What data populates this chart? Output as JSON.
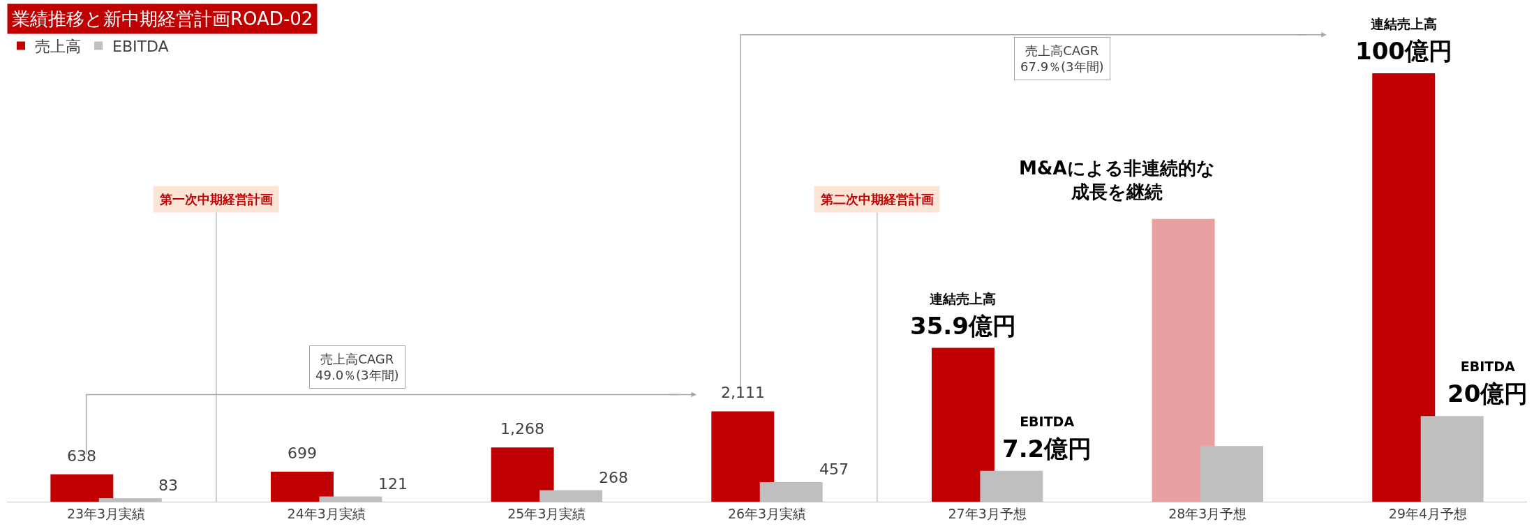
{
  "chart_data": {
    "type": "bar",
    "title": "業績推移と新中期経営計画ROAD-02",
    "categories": [
      "23年3月実績",
      "24年3月実績",
      "25年3月実績",
      "26年3月実績",
      "27年3月予想",
      "28年3月予想",
      "29年4月予想"
    ],
    "series": [
      {
        "name": "売上高",
        "color": "#c00000",
        "colors": [
          "#c00000",
          "#c00000",
          "#c00000",
          "#c00000",
          "#c00000",
          "#e8a0a0",
          "#c00000"
        ],
        "values": [
          638,
          699,
          1268,
          2111,
          3590,
          6600,
          10000
        ],
        "value_labels": [
          "638",
          "699",
          "1,268",
          "2,111",
          "連結売上高\n35.9億円",
          null,
          "連結売上高\n100億円"
        ]
      },
      {
        "name": "EBITDA",
        "color": "#bfbfbf",
        "values": [
          83,
          121,
          268,
          457,
          720,
          1300,
          2000
        ],
        "value_labels": [
          "83",
          "121",
          "268",
          "457",
          "EBITDA\n7.2億円",
          null,
          "EBITDA\n20億円"
        ]
      }
    ],
    "annotations": [
      "第一次中期経営計画",
      "第二次中期経営計画",
      "売上高CAGR\n49.0％(3年間)",
      "売上高CAGR\n67.9％(3年間)",
      "M&Aによる非連続的な成長を継続"
    ],
    "legend": "top left"
  }
}
